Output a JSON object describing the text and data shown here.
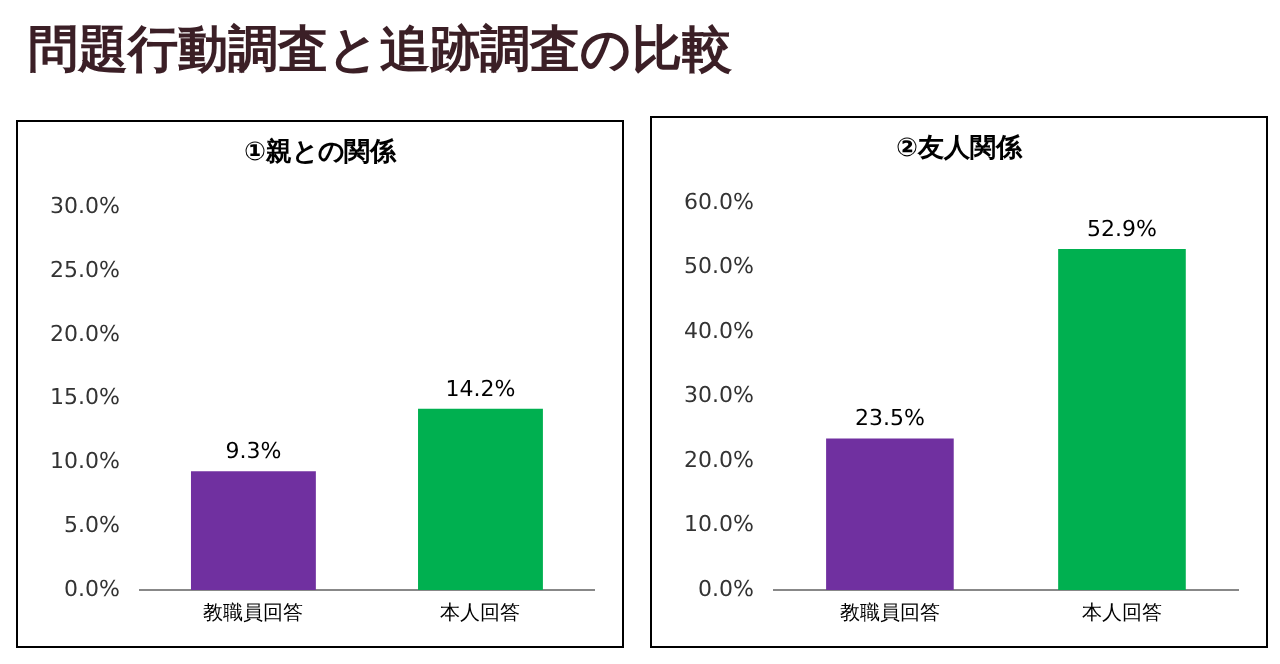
{
  "chart_data": [
    {
      "type": "bar",
      "title": "問題行動調査と追跡調査の比較",
      "subtitle": "①親との関係",
      "categories": [
        "教職員回答",
        "本人回答"
      ],
      "series": [
        {
          "colors": [
            "#7030a0",
            "#00b050"
          ],
          "values": [
            9.3,
            14.2
          ]
        }
      ],
      "ylim": [
        0,
        30
      ],
      "yticks": [
        {
          "value": 0,
          "label": "0.0%"
        },
        {
          "value": 5,
          "label": "5.0%"
        },
        {
          "value": 10,
          "label": "10.0%"
        },
        {
          "value": 15,
          "label": "15.0%"
        },
        {
          "value": 20,
          "label": "20.0%"
        },
        {
          "value": 25,
          "label": "25.0%"
        },
        {
          "value": 30,
          "label": "30.0%"
        }
      ],
      "value_labels": [
        "9.3%",
        "14.2%"
      ],
      "grid": false,
      "legend": false
    },
    {
      "type": "bar",
      "subtitle": "②友人関係",
      "categories": [
        "教職員回答",
        "本人回答"
      ],
      "series": [
        {
          "colors": [
            "#7030a0",
            "#00b050"
          ],
          "values": [
            23.5,
            52.9
          ]
        }
      ],
      "ylim": [
        0,
        60
      ],
      "yticks": [
        {
          "value": 0,
          "label": "0.0%"
        },
        {
          "value": 10,
          "label": "10.0%"
        },
        {
          "value": 20,
          "label": "20.0%"
        },
        {
          "value": 30,
          "label": "30.0%"
        },
        {
          "value": 40,
          "label": "40.0%"
        },
        {
          "value": 50,
          "label": "50.0%"
        },
        {
          "value": 60,
          "label": "60.0%"
        }
      ],
      "value_labels": [
        "23.5%",
        "52.9%"
      ],
      "grid": false,
      "legend": false
    }
  ]
}
